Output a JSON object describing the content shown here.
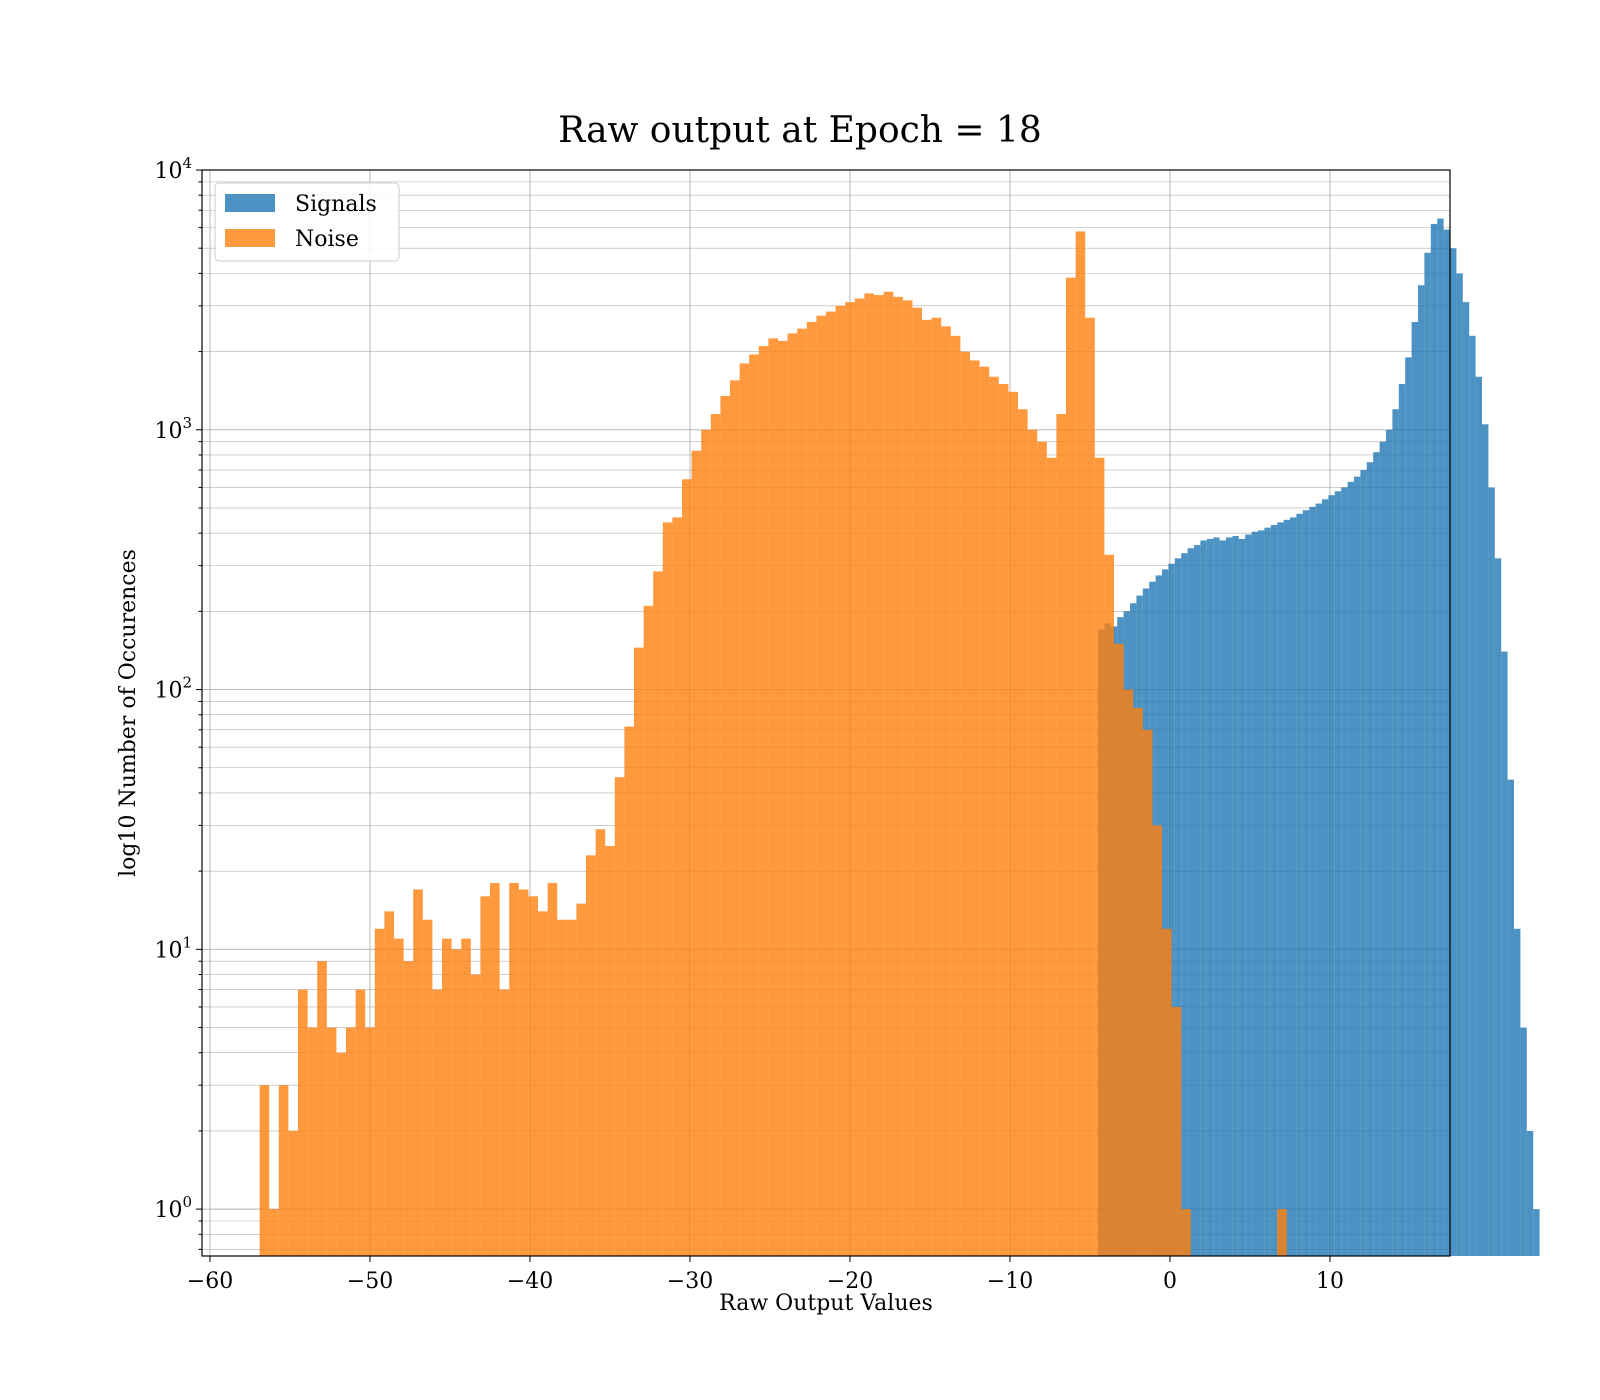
{
  "chart_data": {
    "type": "bar",
    "title": "Raw output at Epoch = 18",
    "xlabel": "Raw Output Values",
    "ylabel": "log10 Number of Occurences",
    "xlim": [
      -60.5,
      17.5
    ],
    "ylim": [
      0.66,
      10000
    ],
    "yscale": "log",
    "grid": true,
    "legend_position": "top-left",
    "x_ticks": [
      -60,
      -50,
      -40,
      -30,
      -20,
      -10,
      0,
      10
    ],
    "x_tick_labels": [
      "−60",
      "−50",
      "−40",
      "−30",
      "−20",
      "−10",
      "0",
      "10"
    ],
    "y_ticks": [
      1,
      10,
      100,
      1000,
      10000
    ],
    "y_tick_labels": [
      {
        "base": "10",
        "exp": "0"
      },
      {
        "base": "10",
        "exp": "1"
      },
      {
        "base": "10",
        "exp": "2"
      },
      {
        "base": "10",
        "exp": "3"
      },
      {
        "base": "10",
        "exp": "4"
      }
    ],
    "series": [
      {
        "name": "Signals",
        "color": "#1f77b4",
        "opacity": 0.8,
        "bin_start": -4.5,
        "bin_width": 0.4,
        "counts": [
          170,
          180,
          175,
          190,
          200,
          215,
          230,
          245,
          260,
          275,
          290,
          305,
          320,
          335,
          350,
          360,
          375,
          380,
          385,
          375,
          385,
          390,
          380,
          395,
          405,
          410,
          420,
          430,
          440,
          450,
          460,
          475,
          490,
          505,
          520,
          540,
          560,
          580,
          600,
          630,
          660,
          700,
          750,
          820,
          900,
          1000,
          1200,
          1500,
          1900,
          2600,
          3600,
          4800,
          6200,
          6500,
          5900,
          5000,
          4000,
          3100,
          2300,
          1600,
          1050,
          600,
          320,
          140,
          45,
          12,
          5,
          2,
          1
        ]
      },
      {
        "name": "Noise",
        "color": "#ff7f0e",
        "opacity": 0.8,
        "bin_start": -56.9,
        "bin_width": 0.6,
        "counts": [
          3,
          1,
          3,
          2,
          7,
          5,
          9,
          5,
          4,
          5,
          7,
          5,
          12,
          14,
          11,
          9,
          17,
          13,
          7,
          11,
          10,
          11,
          8,
          16,
          18,
          7,
          18,
          17,
          16,
          14,
          18,
          13,
          13,
          15,
          23,
          29,
          25,
          46,
          72,
          145,
          210,
          285,
          440,
          460,
          645,
          830,
          1000,
          1150,
          1350,
          1550,
          1800,
          1950,
          2100,
          2250,
          2200,
          2350,
          2450,
          2600,
          2750,
          2850,
          3000,
          3100,
          3200,
          3350,
          3300,
          3400,
          3250,
          3150,
          2950,
          2650,
          2700,
          2500,
          2300,
          2000,
          1850,
          1750,
          1600,
          1500,
          1400,
          1200,
          1000,
          900,
          780,
          1150,
          3850,
          5800,
          2700,
          780,
          330,
          150,
          100,
          85,
          70,
          30,
          12,
          6,
          1,
          0,
          0,
          0,
          0,
          0,
          0,
          0,
          0,
          0,
          1
        ]
      }
    ]
  }
}
